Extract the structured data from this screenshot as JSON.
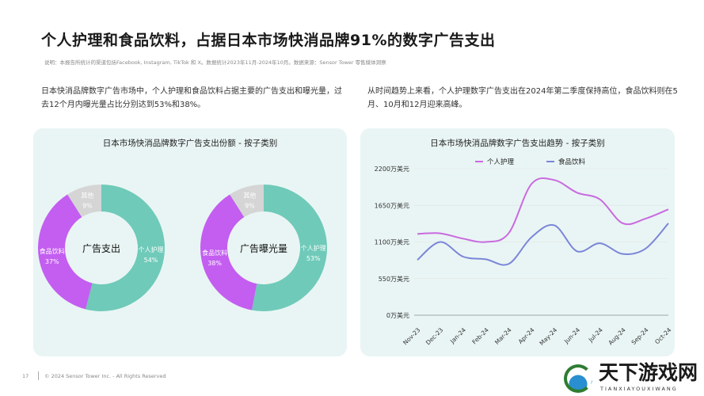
{
  "title": "个人护理和食品饮料，占据日本市场快消品牌91%的数字广告支出",
  "note": "说明：本报告所统计的渠道包括Facebook, Instagram, TikTok 和 X。数据统计2023年11月-2024年10月。数据来源：Sensor Tower 零售媒体洞察",
  "left_text": "日本快消品牌数字广告市场中，个人护理和食品饮料占据主要的广告支出和曝光量，过去12个月内曝光量占比分别达到53%和38%。",
  "right_text": "从时间趋势上来看，个人护理数字广告支出在2024年第二季度保持高位，食品饮料则在5月、10月和12月迎来高峰。",
  "footer": {
    "page": "17",
    "copyright": "© 2024 Sensor Tower Inc. - All Rights Reserved"
  },
  "logo": {
    "cn": "天下游戏网",
    "en": "TIANXIAYOUXIWANG"
  },
  "watermark": "SensorTower",
  "colors": {
    "personal_care": "#6fcab9",
    "food": "#c35ef0",
    "other": "#d5d5d5",
    "line_personal": "#c96ae0",
    "line_food": "#7b86d8"
  },
  "chart_data": [
    {
      "type": "pie",
      "title": "日本市场快消品牌数字广告支出份额 - 按子类别",
      "subtitle_left": "广告支出",
      "subtitle_right": "广告曝光量",
      "donuts": [
        {
          "center_label": "广告支出",
          "slices": [
            {
              "label": "个人护理",
              "value": 54
            },
            {
              "label": "食品饮料",
              "value": 37
            },
            {
              "label": "其他",
              "value": 9
            }
          ]
        },
        {
          "center_label": "广告曝光量",
          "slices": [
            {
              "label": "个人护理",
              "value": 53
            },
            {
              "label": "食品饮料",
              "value": 38
            },
            {
              "label": "其他",
              "value": 9
            }
          ]
        }
      ]
    },
    {
      "type": "line",
      "title": "日本市场快消品牌数字广告支出趋势 - 按子类别",
      "legend": "top",
      "categories": [
        "Nov-23",
        "Dec-23",
        "Jan-24",
        "Feb-24",
        "Mar-24",
        "Apr-24",
        "May-24",
        "Jun-24",
        "Jul-24",
        "Aug-24",
        "Sep-24",
        "Oct-24"
      ],
      "yticks": [
        "0万美元",
        "550万美元",
        "1100万美元",
        "1650万美元",
        "2200万美元"
      ],
      "ylim": [
        0,
        2200
      ],
      "unit": "万美元",
      "series": [
        {
          "name": "个人护理",
          "values": [
            1220,
            1230,
            1150,
            1100,
            1230,
            1970,
            2030,
            1840,
            1740,
            1380,
            1450,
            1590
          ]
        },
        {
          "name": "食品饮料",
          "values": [
            830,
            1100,
            880,
            840,
            770,
            1170,
            1350,
            960,
            1080,
            920,
            1000,
            1380
          ]
        }
      ]
    }
  ]
}
